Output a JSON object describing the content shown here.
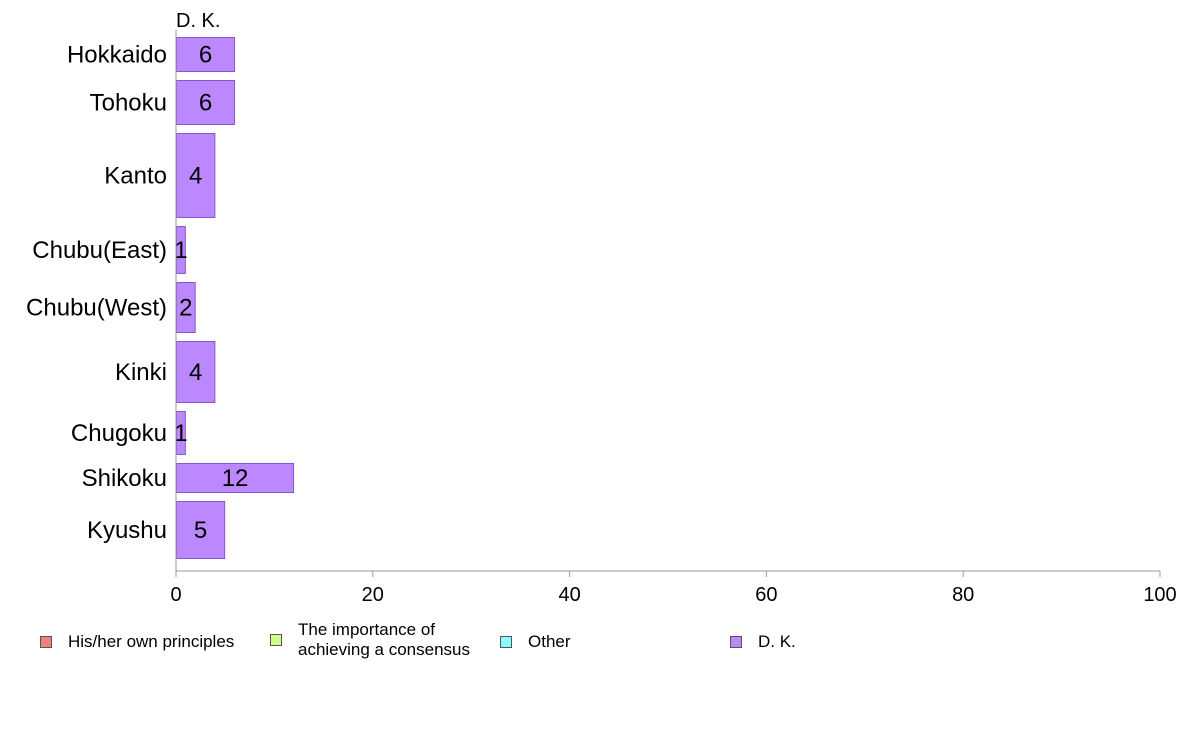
{
  "chart_data": {
    "type": "bar",
    "orientation": "horizontal",
    "title": "D. K.",
    "categories": [
      "Hokkaido",
      "Tohoku",
      "Kanto",
      "Chubu(East)",
      "Chubu(West)",
      "Kinki",
      "Chugoku",
      "Shikoku",
      "Kyushu"
    ],
    "series": [
      {
        "name": "D. K.",
        "values": [
          6,
          6,
          4,
          1,
          2,
          4,
          1,
          12,
          5
        ],
        "color": "#bb88ff"
      }
    ],
    "data_labels": [
      "6",
      "6",
      "4",
      "1",
      "2",
      "4",
      "1",
      "12",
      "5"
    ],
    "xlim": [
      0,
      100
    ],
    "x_ticks": [
      "0",
      "20",
      "40",
      "60",
      "80",
      "100"
    ],
    "grid": false,
    "legend_position": "bottom"
  },
  "legend": [
    {
      "label": "His/her own principles",
      "color": "#f08080"
    },
    {
      "label": "The importance of achieving a consensus",
      "color": "#ccff88"
    },
    {
      "label": "Other",
      "color": "#88ffff"
    },
    {
      "label": "D. K.",
      "color": "#bb88ff"
    }
  ]
}
